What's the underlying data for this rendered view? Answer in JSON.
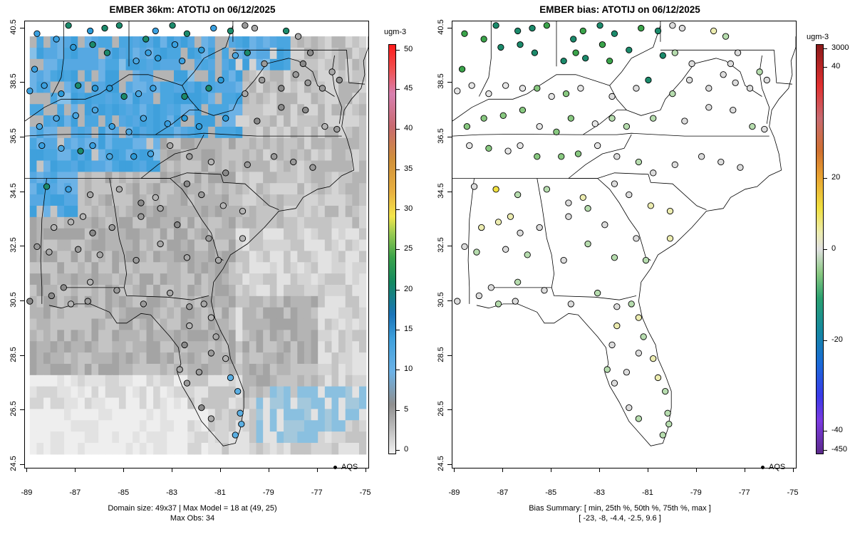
{
  "left_panel": {
    "title": "EMBER 36km: ATOTIJ on 06/12/2025",
    "colorbar_unit": "ugm-3",
    "colorbar_ticks": [
      "50",
      "45",
      "40",
      "35",
      "30",
      "25",
      "20",
      "15",
      "10",
      "5",
      "0"
    ],
    "legend_label": "AQS",
    "caption_line1": "Domain size: 49x37 | Max Model = 18 at (49, 25)",
    "caption_line2": "Max Obs: 34"
  },
  "right_panel": {
    "title": "EMBER bias: ATOTIJ on 06/12/2025",
    "colorbar_unit": "ugm-3",
    "colorbar_ticks": [
      "3000",
      "40",
      "20",
      "0",
      "-20",
      "-40",
      "-450"
    ],
    "legend_label": "AQS",
    "caption_line1": "Bias Summary: [ min, 25th %, 50th %, 75th %, max ]",
    "caption_line2": "[ -23,   -8,   -4.4,   -2.5,   9.6 ]"
  },
  "axes": {
    "x_ticks": [
      "-89",
      "-87",
      "-85",
      "-83",
      "-81",
      "-79",
      "-77",
      "-75"
    ],
    "y_ticks": [
      "40.5",
      "38.5",
      "36.5",
      "34.5",
      "32.5",
      "30.5",
      "28.5",
      "26.5",
      "24.5"
    ]
  },
  "colors": {
    "model_high": "#3fa0dc",
    "model_mid": "#8a8a8a",
    "model_low": "#e0e0e0",
    "obs_low": "#9a9a9a",
    "obs_mid": "#3aa0e0",
    "obs_high": "#1b8a6b",
    "obs_max": "#f0e040",
    "bias_neutral": "#dcdcdc",
    "bias_neg": "#7cc47c",
    "bias_pos": "#f0e040"
  }
}
